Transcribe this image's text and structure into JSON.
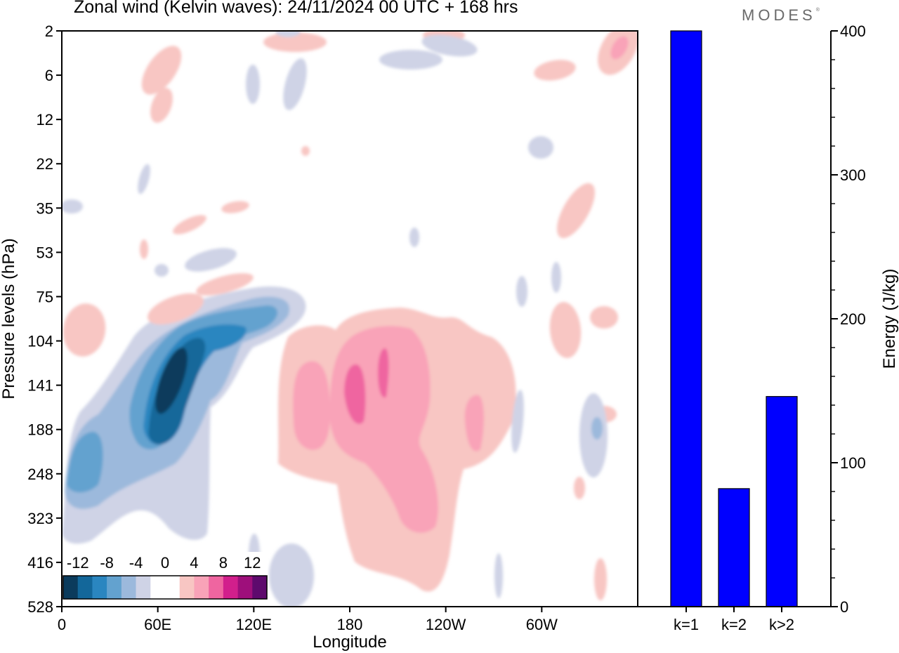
{
  "header": {
    "title": "Zonal wind (Kelvin waves):  24/11/2024  00 UTC  + 168 hrs",
    "logo_text": "MODES",
    "logo_mark": "®"
  },
  "chart_data": [
    {
      "type": "heatmap",
      "title": "Zonal wind (Kelvin waves):  24/11/2024  00 UTC  + 168 hrs",
      "xlabel": "Longitude",
      "ylabel": "Pressure levels (hPa)",
      "x_ticks": [
        "0",
        "60E",
        "120E",
        "180",
        "120W",
        "60W"
      ],
      "x_tick_degrees": [
        0,
        60,
        120,
        180,
        240,
        300
      ],
      "xlim": [
        0,
        360
      ],
      "y_ticks": [
        "2",
        "6",
        "12",
        "22",
        "35",
        "53",
        "75",
        "104",
        "141",
        "188",
        "248",
        "323",
        "416",
        "528"
      ],
      "colorbar": {
        "labels": [
          "-12",
          "-8",
          "-4",
          "0",
          "4",
          "8",
          "12"
        ],
        "levels": [
          -14,
          -12,
          -10,
          -8,
          -6,
          -4,
          -2,
          2,
          4,
          6,
          8,
          10,
          12,
          14
        ],
        "colors": [
          "#0b3b5c",
          "#13679a",
          "#2a86c0",
          "#63a2cf",
          "#9cb9dc",
          "#cfd3e6",
          "#ffffff",
          "#ffffff",
          "#f8c6c3",
          "#f9a3b8",
          "#ef65a0",
          "#d21f8c",
          "#9e0f7b",
          "#5e0a6d"
        ]
      },
      "features": [
        {
          "sign": "negative",
          "peak_ms": -13,
          "lon": 64,
          "level": 141
        },
        {
          "sign": "negative",
          "peak_ms": -7,
          "lon": 12,
          "level": 248
        },
        {
          "sign": "positive",
          "peak_ms": 7,
          "lon": 186,
          "level": 141
        },
        {
          "sign": "positive",
          "peak_ms": 6,
          "lon": 214,
          "level": 248
        },
        {
          "sign": "positive",
          "peak_ms": 5,
          "lon": 150,
          "level": 188
        }
      ]
    },
    {
      "type": "bar",
      "categories": [
        "k=1",
        "k=2",
        "k>2"
      ],
      "values": [
        400,
        82,
        146
      ],
      "ylabel": "Energy (J/kg)",
      "ylim": [
        0,
        400
      ],
      "y_ticks": [
        "0",
        "100",
        "200",
        "300",
        "400"
      ],
      "bar_color": "#0000ff"
    }
  ]
}
